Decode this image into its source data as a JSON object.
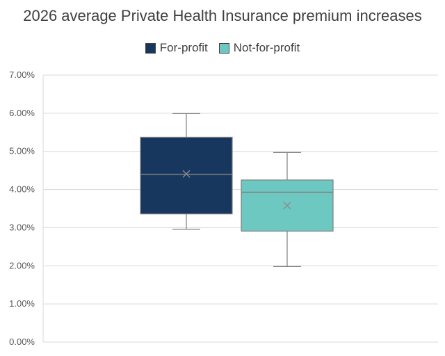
{
  "chart_data": {
    "type": "boxplot",
    "title": "2026 average Private Health Insurance premium increases",
    "ylim": [
      0,
      7
    ],
    "yticks": [
      "0.00%",
      "1.00%",
      "2.00%",
      "3.00%",
      "4.00%",
      "5.00%",
      "6.00%",
      "7.00%"
    ],
    "grid": true,
    "legend_position": "top",
    "series": [
      {
        "name": "For-profit",
        "color": "#17375E",
        "min": 2.96,
        "q1": 3.36,
        "median": 4.4,
        "q3": 5.37,
        "max": 5.99,
        "mean": 4.41
      },
      {
        "name": "Not-for-profit",
        "color": "#6CC8C1",
        "min": 1.98,
        "q1": 2.91,
        "median": 3.93,
        "q3": 4.25,
        "max": 4.97,
        "mean": 3.58
      }
    ]
  }
}
